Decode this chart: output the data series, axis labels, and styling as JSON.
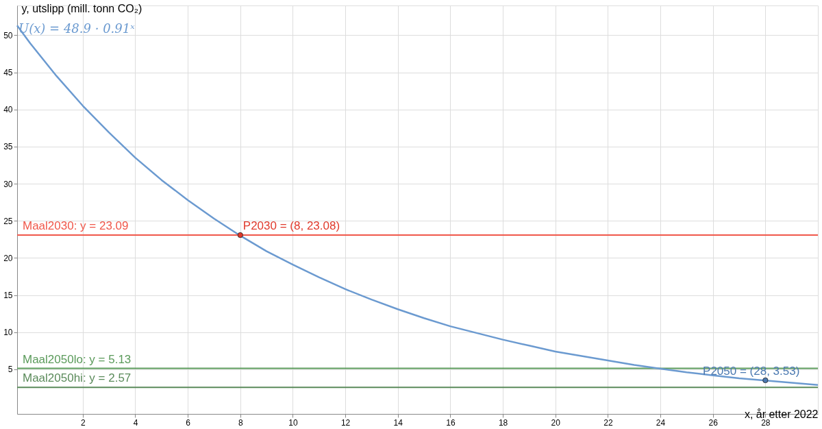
{
  "chart_data": {
    "type": "line",
    "xlabel": "x, år etter 2022",
    "ylabel": "y, utslipp (mill. tonn CO₂)",
    "xlim": [
      -0.5,
      30
    ],
    "ylim": [
      -1,
      54
    ],
    "xticks": [
      2,
      4,
      6,
      8,
      10,
      12,
      14,
      16,
      18,
      20,
      22,
      24,
      26,
      28
    ],
    "yticks": [
      5,
      10,
      15,
      20,
      25,
      30,
      35,
      40,
      45,
      50
    ],
    "grid": true,
    "legend": false,
    "marker": "none",
    "line_style": "solid",
    "series": [
      {
        "name": "U(x) = 48.9 · 0.91ˣ",
        "color": "#6b9ad0",
        "x": [
          -0.5,
          0,
          1,
          2,
          3,
          4,
          5,
          6,
          7,
          8,
          9,
          10,
          11,
          12,
          13,
          14,
          15,
          16,
          17,
          18,
          19,
          20,
          21,
          22,
          23,
          24,
          25,
          26,
          27,
          28,
          29,
          30
        ],
        "values": [
          51.3,
          48.9,
          44.5,
          40.5,
          36.9,
          33.5,
          30.5,
          27.8,
          25.3,
          23.0,
          20.9,
          19.1,
          17.4,
          15.8,
          14.4,
          13.1,
          11.9,
          10.8,
          9.9,
          9.0,
          8.2,
          7.4,
          6.8,
          6.2,
          5.6,
          5.1,
          4.6,
          4.2,
          3.8,
          3.5,
          3.2,
          2.9
        ]
      },
      {
        "type": "scatter",
        "marker": "circle",
        "x": [
          8,
          28
        ],
        "values": [
          23.08,
          3.53
        ],
        "colors": [
          "#e0392b",
          "#4a78b0"
        ]
      }
    ],
    "ref_lines": [
      {
        "axis": "y",
        "value": 23.09,
        "label": "Maal2030: y = 23.09",
        "color": "#f0574a"
      },
      {
        "axis": "y",
        "value": 5.13,
        "label": "Maal2050lo: y = 5.13",
        "color": "#5a9a5a"
      },
      {
        "axis": "y",
        "value": 2.57,
        "label": "Maal2050hi: y = 2.57",
        "color": "#5a8a5a"
      }
    ],
    "annotations": [
      {
        "text": "P2030 = (8, 23.08)",
        "x": 8,
        "y": 23.08
      },
      {
        "text": "P2050 = (28, 3.53)",
        "x": 28,
        "y": 3.53
      }
    ]
  }
}
